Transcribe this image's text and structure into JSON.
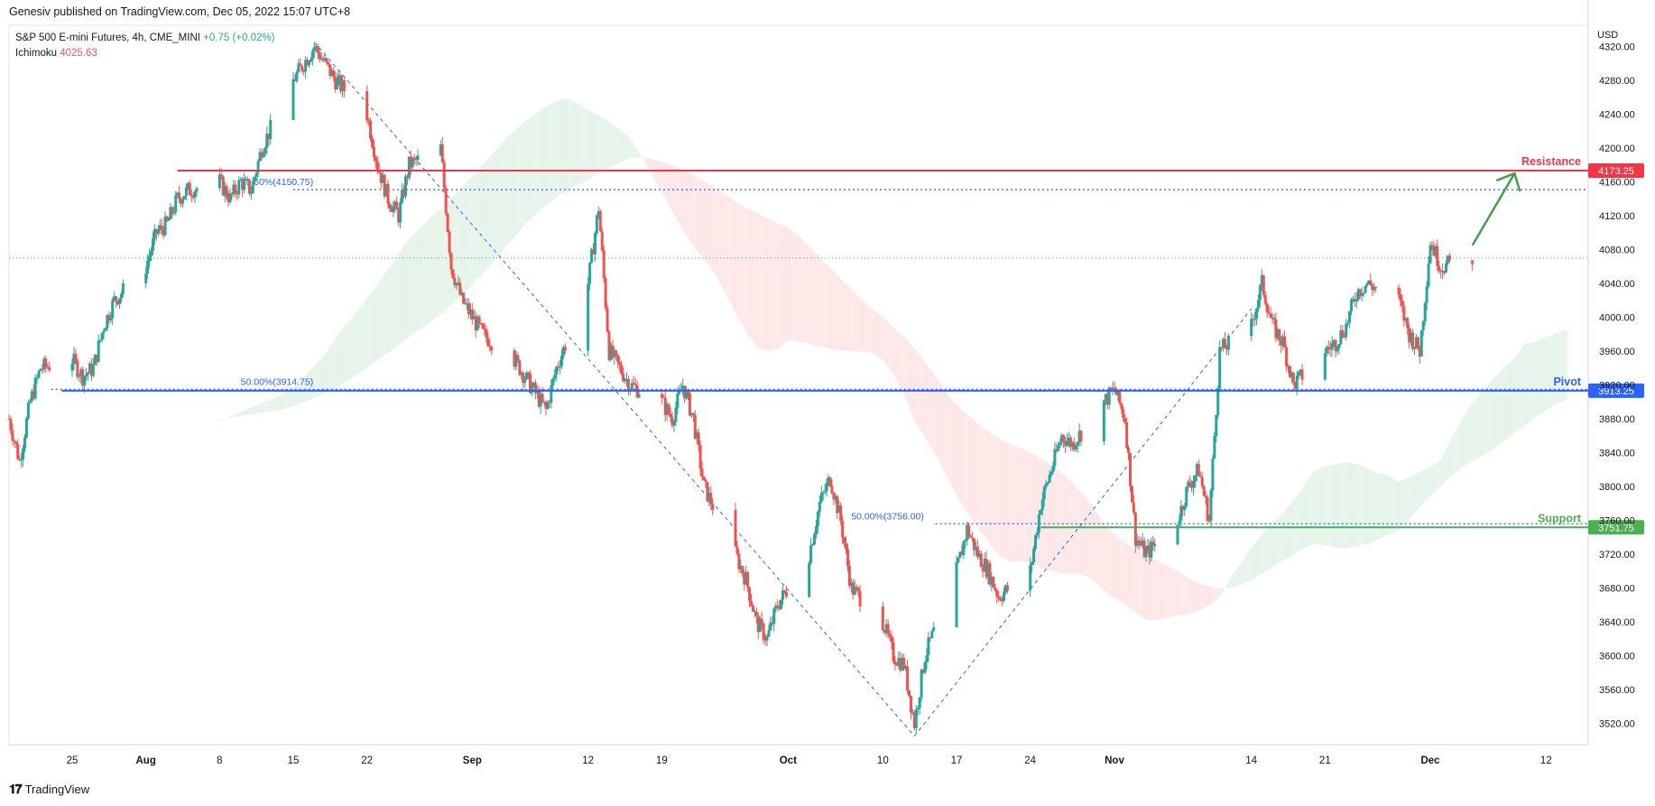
{
  "header": {
    "credit": "Genesiv published on TradingView.com, Dec 05, 2022 15:07 UTC+8"
  },
  "legend": {
    "symbol": "S&P 500 E-mini Futures, 4h, CME_MINI",
    "change": "+0.75 (+0.02%)",
    "indicator_name": "Ichimoku",
    "indicator_value": "4025.63"
  },
  "footer": {
    "brand": "TradingView",
    "logo_icon": "tradingview-logo-icon"
  },
  "colors": {
    "resistance": "#f23645",
    "pivot": "#2962ff",
    "support": "#4caf50",
    "fib": "#2962ff",
    "candle_up": "#26a69a",
    "candle_down": "#ef5350",
    "cloud_bull": "#e6f4ea",
    "cloud_bear": "#fde7e7",
    "arrow": "#43a047"
  },
  "chart_data": {
    "type": "candlestick",
    "currency": "USD",
    "ylim": [
      3495,
      4345
    ],
    "y_ticks": [
      "4320.00",
      "4280.00",
      "4240.00",
      "4200.00",
      "4160.00",
      "4120.00",
      "4080.00",
      "4040.00",
      "4000.00",
      "3960.00",
      "3920.00",
      "3880.00",
      "3840.00",
      "3800.00",
      "3760.00",
      "3720.00",
      "3680.00",
      "3640.00",
      "3600.00",
      "3560.00",
      "3520.00"
    ],
    "x_ticks": [
      {
        "label": "25",
        "date": "2022-07-25"
      },
      {
        "label": "Aug",
        "date": "2022-08-01"
      },
      {
        "label": "8",
        "date": "2022-08-08"
      },
      {
        "label": "15",
        "date": "2022-08-15"
      },
      {
        "label": "22",
        "date": "2022-08-22"
      },
      {
        "label": "Sep",
        "date": "2022-09-01"
      },
      {
        "label": "12",
        "date": "2022-09-12"
      },
      {
        "label": "19",
        "date": "2022-09-19"
      },
      {
        "label": "Oct",
        "date": "2022-10-01"
      },
      {
        "label": "10",
        "date": "2022-10-10"
      },
      {
        "label": "17",
        "date": "2022-10-17"
      },
      {
        "label": "24",
        "date": "2022-10-24"
      },
      {
        "label": "Nov",
        "date": "2022-11-01"
      },
      {
        "label": "14",
        "date": "2022-11-14"
      },
      {
        "label": "21",
        "date": "2022-11-21"
      },
      {
        "label": "Dec",
        "date": "2022-12-01"
      },
      {
        "label": "12",
        "date": "2022-12-12"
      }
    ],
    "x_range": [
      "2022-07-19",
      "2022-12-16"
    ],
    "price_path": [
      [
        "2022-07-19",
        3880
      ],
      [
        "2022-07-20",
        3830
      ],
      [
        "2022-07-21",
        3900
      ],
      [
        "2022-07-22",
        3940
      ],
      [
        "2022-07-25",
        3950
      ],
      [
        "2022-07-26",
        3930
      ],
      [
        "2022-07-27",
        3940
      ],
      [
        "2022-07-28",
        3990
      ],
      [
        "2022-07-29",
        4020
      ],
      [
        "2022-08-01",
        4060
      ],
      [
        "2022-08-02",
        4100
      ],
      [
        "2022-08-03",
        4110
      ],
      [
        "2022-08-04",
        4140
      ],
      [
        "2022-08-05",
        4150
      ],
      [
        "2022-08-08",
        4160
      ],
      [
        "2022-08-09",
        4140
      ],
      [
        "2022-08-10",
        4160
      ],
      [
        "2022-08-11",
        4150
      ],
      [
        "2022-08-12",
        4200
      ],
      [
        "2022-08-15",
        4280
      ],
      [
        "2022-08-16",
        4300
      ],
      [
        "2022-08-17",
        4320
      ],
      [
        "2022-08-18",
        4300
      ],
      [
        "2022-08-19",
        4280
      ],
      [
        "2022-08-22",
        4240
      ],
      [
        "2022-08-23",
        4180
      ],
      [
        "2022-08-24",
        4140
      ],
      [
        "2022-08-25",
        4120
      ],
      [
        "2022-08-26",
        4180
      ],
      [
        "2022-08-29",
        4200
      ],
      [
        "2022-08-30",
        4060
      ],
      [
        "2022-08-31",
        4020
      ],
      [
        "2022-09-01",
        4000
      ],
      [
        "2022-09-02",
        3980
      ],
      [
        "2022-09-05",
        3950
      ],
      [
        "2022-09-06",
        3930
      ],
      [
        "2022-09-07",
        3910
      ],
      [
        "2022-09-08",
        3890
      ],
      [
        "2022-09-09",
        3940
      ],
      [
        "2022-09-12",
        4040
      ],
      [
        "2022-09-13",
        4130
      ],
      [
        "2022-09-14",
        3960
      ],
      [
        "2022-09-15",
        3940
      ],
      [
        "2022-09-16",
        3920
      ],
      [
        "2022-09-19",
        3900
      ],
      [
        "2022-09-20",
        3880
      ],
      [
        "2022-09-21",
        3920
      ],
      [
        "2022-09-22",
        3880
      ],
      [
        "2022-09-23",
        3800
      ],
      [
        "2022-09-26",
        3720
      ],
      [
        "2022-09-27",
        3690
      ],
      [
        "2022-09-28",
        3640
      ],
      [
        "2022-09-29",
        3620
      ],
      [
        "2022-09-30",
        3660
      ],
      [
        "2022-10-03",
        3720
      ],
      [
        "2022-10-04",
        3780
      ],
      [
        "2022-10-05",
        3810
      ],
      [
        "2022-10-06",
        3760
      ],
      [
        "2022-10-07",
        3680
      ],
      [
        "2022-10-10",
        3640
      ],
      [
        "2022-10-11",
        3600
      ],
      [
        "2022-10-12",
        3590
      ],
      [
        "2022-10-13",
        3520
      ],
      [
        "2022-10-14",
        3600
      ],
      [
        "2022-10-17",
        3700
      ],
      [
        "2022-10-18",
        3750
      ],
      [
        "2022-10-19",
        3720
      ],
      [
        "2022-10-20",
        3700
      ],
      [
        "2022-10-21",
        3670
      ],
      [
        "2022-10-24",
        3700
      ],
      [
        "2022-10-25",
        3780
      ],
      [
        "2022-10-26",
        3820
      ],
      [
        "2022-10-27",
        3860
      ],
      [
        "2022-10-28",
        3850
      ],
      [
        "2022-10-31",
        3900
      ],
      [
        "2022-11-01",
        3915
      ],
      [
        "2022-11-02",
        3880
      ],
      [
        "2022-11-03",
        3740
      ],
      [
        "2022-11-04",
        3720
      ],
      [
        "2022-11-07",
        3760
      ],
      [
        "2022-11-08",
        3800
      ],
      [
        "2022-11-09",
        3820
      ],
      [
        "2022-11-10",
        3760
      ],
      [
        "2022-11-11",
        3960
      ],
      [
        "2022-11-14",
        3990
      ],
      [
        "2022-11-15",
        4040
      ],
      [
        "2022-11-16",
        3990
      ],
      [
        "2022-11-17",
        3970
      ],
      [
        "2022-11-18",
        3920
      ],
      [
        "2022-11-21",
        3960
      ],
      [
        "2022-11-22",
        3970
      ],
      [
        "2022-11-23",
        3990
      ],
      [
        "2022-11-24",
        4030
      ],
      [
        "2022-11-25",
        4040
      ],
      [
        "2022-11-28",
        4020
      ],
      [
        "2022-11-29",
        3980
      ],
      [
        "2022-11-30",
        3960
      ],
      [
        "2022-12-01",
        4090
      ],
      [
        "2022-12-02",
        4060
      ],
      [
        "2022-12-05",
        4070
      ]
    ],
    "annotations": {
      "resistance": {
        "label": "Resistance",
        "value": 4173.25,
        "badge": "4173.25"
      },
      "pivot": {
        "label": "Pivot",
        "value": 3913.25,
        "badge": "3913.25"
      },
      "support": {
        "label": "Support",
        "value": 3751.75,
        "badge": "3751.75"
      },
      "fib_levels": [
        {
          "text": "78.60%(4150.75)",
          "value": 4150.75
        },
        {
          "text": "50.00%(3914.75)",
          "value": 3914.75
        },
        {
          "text": "50.00%(3756.00)",
          "value": 3756.0
        }
      ],
      "last_price_line": 4070
    }
  }
}
